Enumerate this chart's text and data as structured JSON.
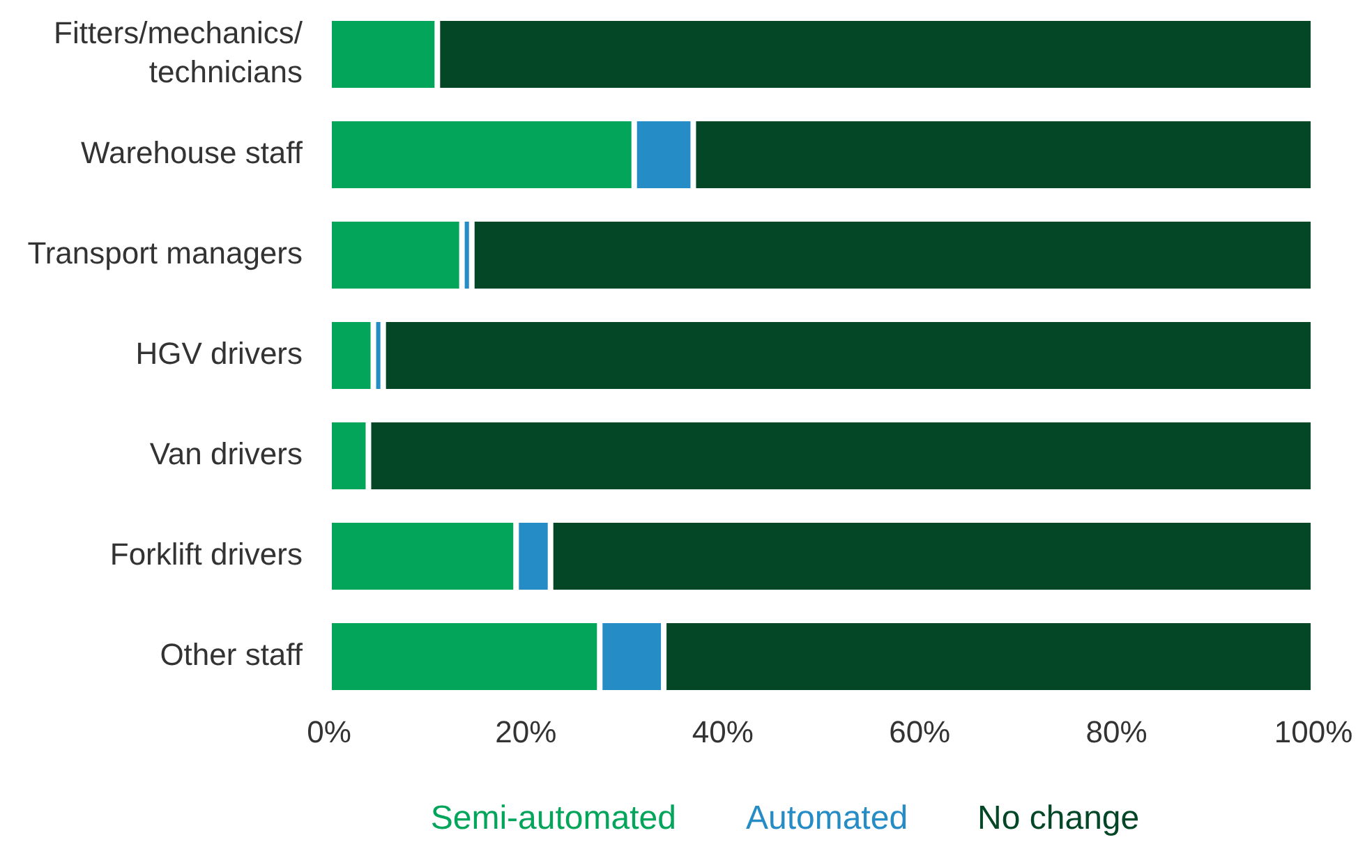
{
  "chart_data": {
    "type": "bar",
    "orientation": "horizontal",
    "stacked": true,
    "categories": [
      "Fitters/mechanics/technicians",
      "Warehouse staff",
      "Transport managers",
      "HGV drivers",
      "Van drivers",
      "Forklift drivers",
      "Other staff"
    ],
    "series": [
      {
        "name": "Semi-automated",
        "color": "#03a55b",
        "values": [
          11,
          31,
          13.5,
          4.5,
          4,
          19,
          27.5
        ]
      },
      {
        "name": "Automated",
        "color": "#268cc6",
        "values": [
          0,
          6,
          1,
          1,
          0,
          3.5,
          6.5
        ]
      },
      {
        "name": "No change",
        "color": "#034727",
        "values": [
          89,
          63,
          85.5,
          94.5,
          96,
          77.5,
          66
        ]
      }
    ],
    "xlim": [
      0,
      100
    ],
    "xticks": [
      {
        "value": 0,
        "label": "0%"
      },
      {
        "value": 20,
        "label": "20%"
      },
      {
        "value": 40,
        "label": "40%"
      },
      {
        "value": 60,
        "label": "60%"
      },
      {
        "value": 80,
        "label": "80%"
      },
      {
        "value": 100,
        "label": "100%"
      }
    ],
    "grid": false,
    "legend": "bottom"
  }
}
